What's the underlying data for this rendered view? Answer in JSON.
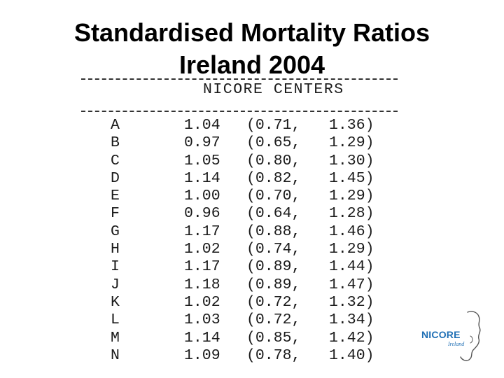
{
  "title": {
    "line1": "Standardised Mortality Ratios",
    "line2": "Ireland 2004"
  },
  "table": {
    "header": "NICORE CENTERS",
    "rows": [
      {
        "id": "A",
        "ratio": "1.04",
        "ci_low": "(0.71,",
        "ci_high": "1.36)"
      },
      {
        "id": "B",
        "ratio": "0.97",
        "ci_low": "(0.65,",
        "ci_high": "1.29)"
      },
      {
        "id": "C",
        "ratio": "1.05",
        "ci_low": "(0.80,",
        "ci_high": "1.30)"
      },
      {
        "id": "D",
        "ratio": "1.14",
        "ci_low": "(0.82,",
        "ci_high": "1.45)"
      },
      {
        "id": "E",
        "ratio": "1.00",
        "ci_low": "(0.70,",
        "ci_high": "1.29)"
      },
      {
        "id": "F",
        "ratio": "0.96",
        "ci_low": "(0.64,",
        "ci_high": "1.28)"
      },
      {
        "id": "G",
        "ratio": "1.17",
        "ci_low": "(0.88,",
        "ci_high": "1.46)"
      },
      {
        "id": "H",
        "ratio": "1.02",
        "ci_low": "(0.74,",
        "ci_high": "1.29)"
      },
      {
        "id": "I",
        "ratio": "1.17",
        "ci_low": "(0.89,",
        "ci_high": "1.44)"
      },
      {
        "id": "J",
        "ratio": "1.18",
        "ci_low": "(0.89,",
        "ci_high": "1.47)"
      },
      {
        "id": "K",
        "ratio": "1.02",
        "ci_low": "(0.72,",
        "ci_high": "1.32)"
      },
      {
        "id": "L",
        "ratio": "1.03",
        "ci_low": "(0.72,",
        "ci_high": "1.34)"
      },
      {
        "id": "M",
        "ratio": "1.14",
        "ci_low": "(0.85,",
        "ci_high": "1.42)"
      },
      {
        "id": "N",
        "ratio": "1.09",
        "ci_low": "(0.78,",
        "ci_high": "1.40)"
      }
    ]
  },
  "logo": {
    "name": "NICORE",
    "subtitle": "Ireland"
  },
  "colors": {
    "logo_blue": "#1f6fb5",
    "text": "#000000"
  }
}
